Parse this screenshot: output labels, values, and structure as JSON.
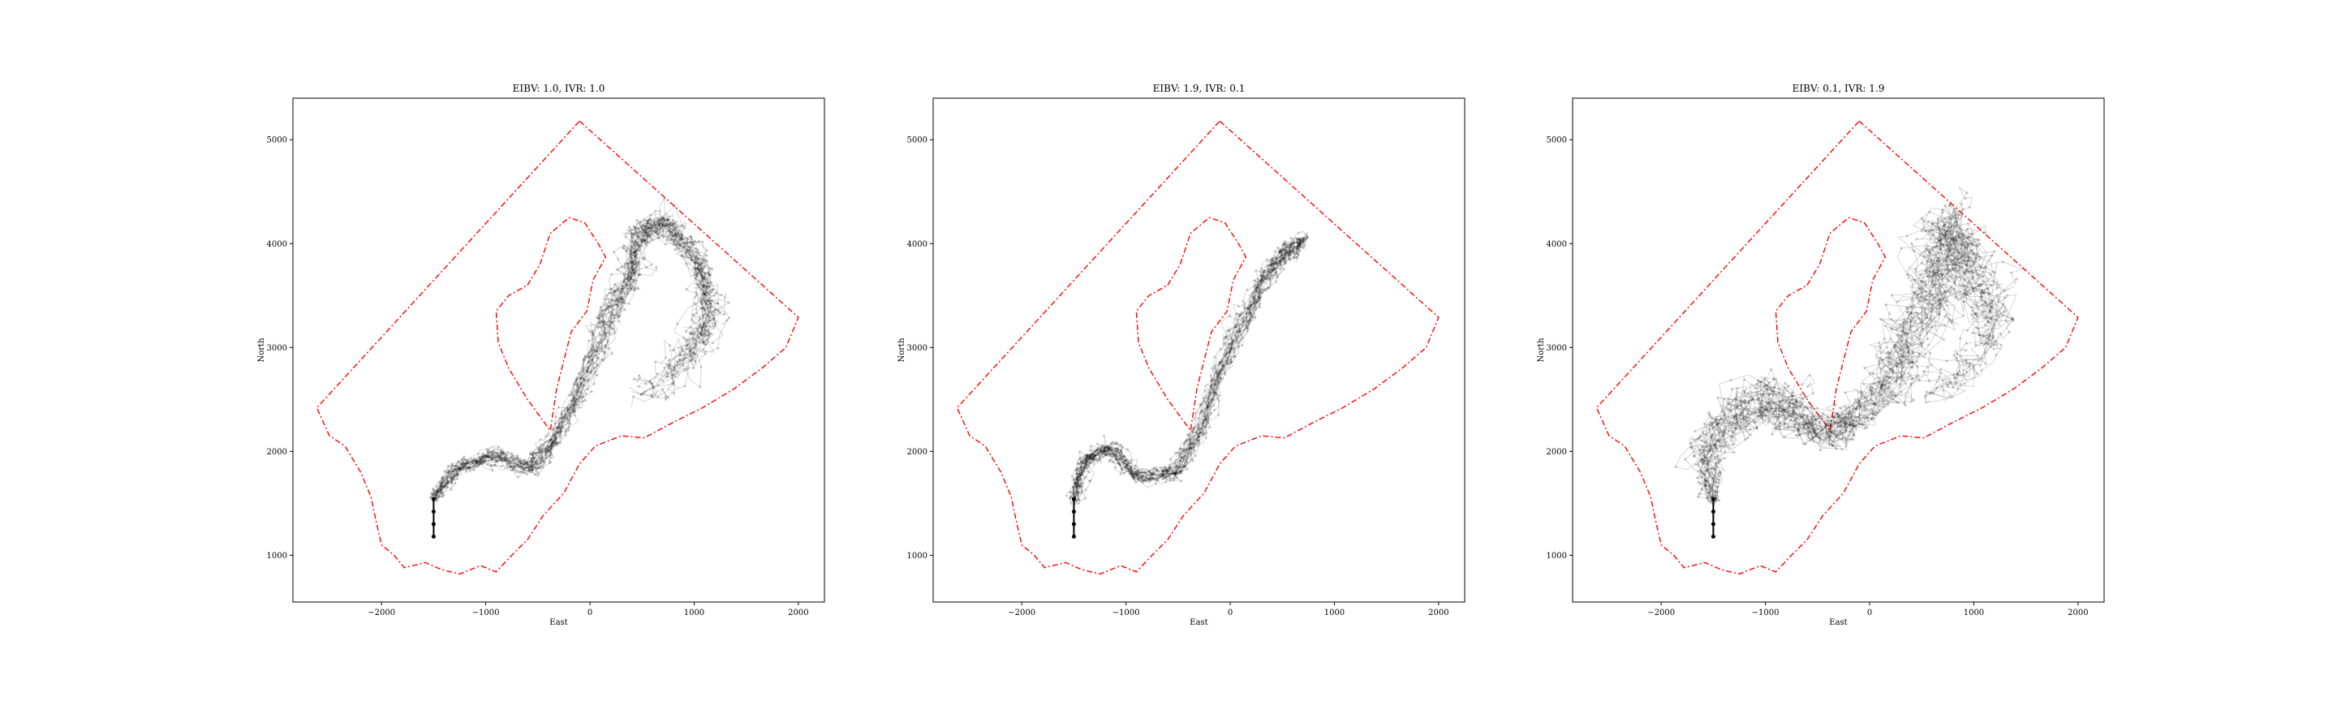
{
  "figure": {
    "background": "#ffffff"
  },
  "chart_data": [
    {
      "type": "line",
      "title": "EIBV: 1.0, IVR: 1.0",
      "xlabel": "East",
      "ylabel": "North",
      "xlim": [
        -2850,
        2250
      ],
      "ylim": [
        550,
        5400
      ],
      "xticks": [
        -2000,
        -1000,
        0,
        1000,
        2000
      ],
      "xtick_labels": [
        "−2000",
        "−1000",
        "0",
        "1000",
        "2000"
      ],
      "yticks": [
        1000,
        2000,
        3000,
        4000,
        5000
      ],
      "ytick_labels": [
        "1000",
        "2000",
        "3000",
        "4000",
        "5000"
      ],
      "grid": false,
      "boundary_color": "#ff0000",
      "path_color": "#000000",
      "start_path": [
        [
          -1500,
          1180
        ],
        [
          -1500,
          1300
        ],
        [
          -1500,
          1420
        ],
        [
          -1500,
          1540
        ]
      ],
      "waypoints": [
        [
          -1500,
          1540
        ],
        [
          -1250,
          1850
        ],
        [
          -900,
          1950
        ],
        [
          -550,
          1850
        ],
        [
          -350,
          2100
        ],
        [
          -100,
          2600
        ],
        [
          150,
          3200
        ],
        [
          350,
          3650
        ],
        [
          450,
          4050
        ],
        [
          700,
          4250
        ],
        [
          1000,
          3900
        ],
        [
          1150,
          3400
        ],
        [
          1000,
          3000
        ],
        [
          700,
          2700
        ],
        [
          400,
          2500
        ]
      ],
      "spread": [
        0.9,
        1.0,
        1.0,
        1.0,
        0.9,
        1.2,
        1.6,
        1.6,
        1.6,
        1.6,
        1.7,
        1.9,
        2.0,
        2.0,
        2.0
      ],
      "n_paths": 22
    },
    {
      "type": "line",
      "title": "EIBV: 1.9, IVR: 0.1",
      "xlabel": "East",
      "ylabel": "North",
      "xlim": [
        -2850,
        2250
      ],
      "ylim": [
        550,
        5400
      ],
      "xticks": [
        -2000,
        -1000,
        0,
        1000,
        2000
      ],
      "xtick_labels": [
        "−2000",
        "−1000",
        "0",
        "1000",
        "2000"
      ],
      "yticks": [
        1000,
        2000,
        3000,
        4000,
        5000
      ],
      "ytick_labels": [
        "1000",
        "2000",
        "3000",
        "4000",
        "5000"
      ],
      "grid": false,
      "boundary_color": "#ff0000",
      "path_color": "#000000",
      "start_path": [
        [
          -1500,
          1180
        ],
        [
          -1500,
          1300
        ],
        [
          -1500,
          1420
        ],
        [
          -1500,
          1540
        ]
      ],
      "waypoints": [
        [
          -1500,
          1540
        ],
        [
          -1400,
          1900
        ],
        [
          -1150,
          2050
        ],
        [
          -900,
          1750
        ],
        [
          -550,
          1800
        ],
        [
          -300,
          2200
        ],
        [
          -100,
          2800
        ],
        [
          150,
          3300
        ],
        [
          350,
          3700
        ],
        [
          550,
          3950
        ],
        [
          700,
          4050
        ],
        [
          550,
          3850
        ]
      ],
      "spread": [
        0.8,
        1.0,
        1.0,
        0.9,
        1.0,
        1.0,
        1.1,
        1.1,
        1.0,
        0.9,
        0.8,
        0.8
      ],
      "n_paths": 22
    },
    {
      "type": "line",
      "title": "EIBV: 0.1, IVR: 1.9",
      "xlabel": "East",
      "ylabel": "North",
      "xlim": [
        -2850,
        2250
      ],
      "ylim": [
        550,
        5400
      ],
      "xticks": [
        -2000,
        -1000,
        0,
        1000,
        2000
      ],
      "xtick_labels": [
        "−2000",
        "−1000",
        "0",
        "1000",
        "2000"
      ],
      "yticks": [
        1000,
        2000,
        3000,
        4000,
        5000
      ],
      "ytick_labels": [
        "1000",
        "2000",
        "3000",
        "4000",
        "5000"
      ],
      "grid": false,
      "boundary_color": "#ff0000",
      "path_color": "#000000",
      "start_path": [
        [
          -1500,
          1180
        ],
        [
          -1500,
          1300
        ],
        [
          -1500,
          1420
        ],
        [
          -1500,
          1540
        ]
      ],
      "waypoints": [
        [
          -1500,
          1540
        ],
        [
          -1600,
          2000
        ],
        [
          -1250,
          2400
        ],
        [
          -900,
          2500
        ],
        [
          -600,
          2250
        ],
        [
          -300,
          2200
        ],
        [
          0,
          2500
        ],
        [
          300,
          2900
        ],
        [
          550,
          3400
        ],
        [
          700,
          3800
        ],
        [
          800,
          4200
        ],
        [
          1000,
          3700
        ],
        [
          1200,
          3200
        ],
        [
          950,
          2800
        ],
        [
          500,
          2500
        ]
      ],
      "spread": [
        1.0,
        2.4,
        3.2,
        2.8,
        2.2,
        2.0,
        2.4,
        3.0,
        3.4,
        3.4,
        3.0,
        2.8,
        2.6,
        2.4,
        2.2
      ],
      "n_paths": 22
    }
  ],
  "boundary": {
    "outer": [
      [
        -100,
        5180
      ],
      [
        2000,
        3290
      ],
      [
        1880,
        3000
      ],
      [
        1650,
        2800
      ],
      [
        1380,
        2600
      ],
      [
        1080,
        2420
      ],
      [
        800,
        2280
      ],
      [
        520,
        2130
      ],
      [
        300,
        2150
      ],
      [
        50,
        2050
      ],
      [
        -100,
        1880
      ],
      [
        -250,
        1600
      ],
      [
        -450,
        1380
      ],
      [
        -600,
        1150
      ],
      [
        -750,
        1000
      ],
      [
        -900,
        840
      ],
      [
        -1050,
        900
      ],
      [
        -1250,
        820
      ],
      [
        -1420,
        860
      ],
      [
        -1580,
        930
      ],
      [
        -1780,
        880
      ],
      [
        -1880,
        1000
      ],
      [
        -2000,
        1100
      ],
      [
        -2050,
        1320
      ],
      [
        -2100,
        1560
      ],
      [
        -2200,
        1800
      ],
      [
        -2350,
        2050
      ],
      [
        -2500,
        2150
      ],
      [
        -2620,
        2420
      ],
      [
        -100,
        5180
      ]
    ],
    "inner": [
      [
        -600,
        3600
      ],
      [
        -480,
        3800
      ],
      [
        -380,
        4100
      ],
      [
        -200,
        4250
      ],
      [
        -50,
        4200
      ],
      [
        80,
        4000
      ],
      [
        150,
        3870
      ],
      [
        30,
        3650
      ],
      [
        -30,
        3350
      ],
      [
        -180,
        3150
      ],
      [
        -320,
        2600
      ],
      [
        -380,
        2200
      ],
      [
        -600,
        2500
      ],
      [
        -780,
        2800
      ],
      [
        -880,
        3050
      ],
      [
        -900,
        3350
      ],
      [
        -780,
        3500
      ],
      [
        -600,
        3600
      ]
    ]
  }
}
